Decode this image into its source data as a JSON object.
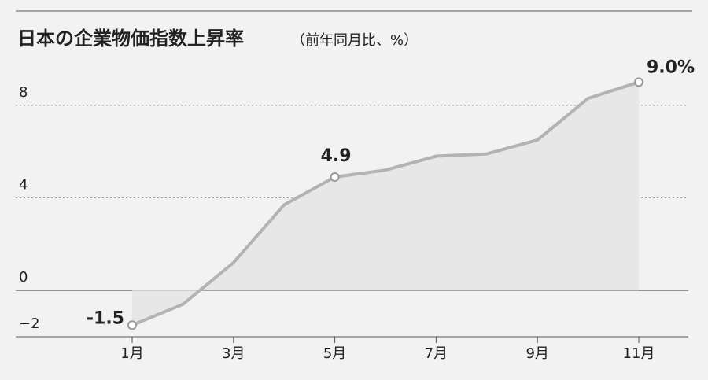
{
  "chart_data": {
    "type": "line",
    "title": "日本の企業物価指数上昇率",
    "subtitle": "（前年同月比、%）",
    "categories": [
      "1月",
      null,
      "3月",
      null,
      "5月",
      null,
      "7月",
      null,
      "9月",
      null,
      "11月"
    ],
    "values": [
      -1.5,
      -0.6,
      1.2,
      3.7,
      4.9,
      5.2,
      5.8,
      5.9,
      6.5,
      8.3,
      9.0
    ],
    "value_labels": [
      "-1.5",
      null,
      null,
      null,
      "4.9",
      null,
      null,
      null,
      null,
      null,
      "9.0%"
    ],
    "color": "#b3b3b3",
    "ylim": [
      -2,
      10
    ],
    "yticks": [
      {
        "value": -2,
        "label": "−2"
      },
      0,
      4,
      8
    ],
    "grid": true
  }
}
